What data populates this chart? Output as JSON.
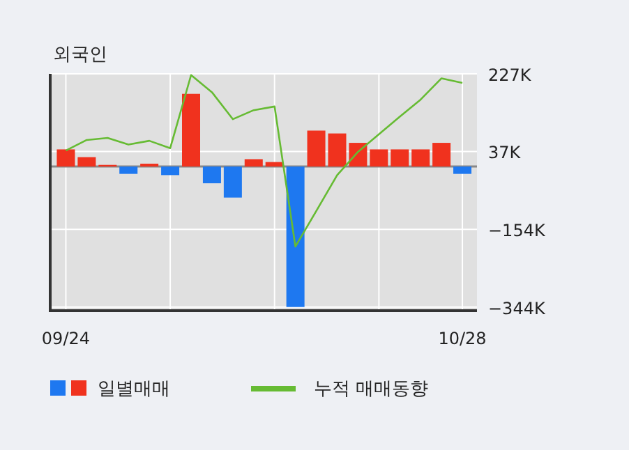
{
  "chart_data": {
    "type": "bar",
    "title": "외국인",
    "categories": [
      "09/24",
      null,
      null,
      null,
      null,
      null,
      null,
      null,
      null,
      null,
      null,
      null,
      null,
      null,
      null,
      null,
      null,
      null,
      null,
      "10/28"
    ],
    "series": [
      {
        "name": "일별매매",
        "colors": [
          "#f0321e",
          "#f0321e",
          "#f0321e",
          "#1e78f0",
          "#f0321e",
          "#1e78f0",
          "#f0321e",
          "#1e78f0",
          "#1e78f0",
          "#f0321e",
          "#f0321e",
          "#1e78f0",
          "#f0321e",
          "#f0321e",
          "#f0321e",
          "#f0321e",
          "#f0321e",
          "#f0321e",
          "#f0321e",
          "#1e78f0"
        ],
        "values": [
          42,
          23,
          4,
          -18,
          7,
          -21,
          178,
          -41,
          -76,
          18,
          11,
          -344,
          88,
          81,
          58,
          42,
          42,
          42,
          58,
          -18
        ]
      },
      {
        "name": "누적 매매동향",
        "type": "line",
        "color": "#66bb33",
        "values": [
          39,
          65,
          70,
          54,
          63,
          45,
          224,
          182,
          116,
          138,
          147,
          -196,
          -109,
          -21,
          36,
          79,
          122,
          164,
          216,
          205
        ]
      }
    ],
    "ylim": [
      -353,
      227
    ],
    "yticks": [
      {
        "value": 227,
        "label": "227K"
      },
      {
        "value": 37,
        "label": "37K"
      },
      {
        "value": -154,
        "label": "−154K"
      },
      {
        "value": -344,
        "label": "−344K"
      }
    ],
    "grid": true,
    "legend": "bottom"
  }
}
